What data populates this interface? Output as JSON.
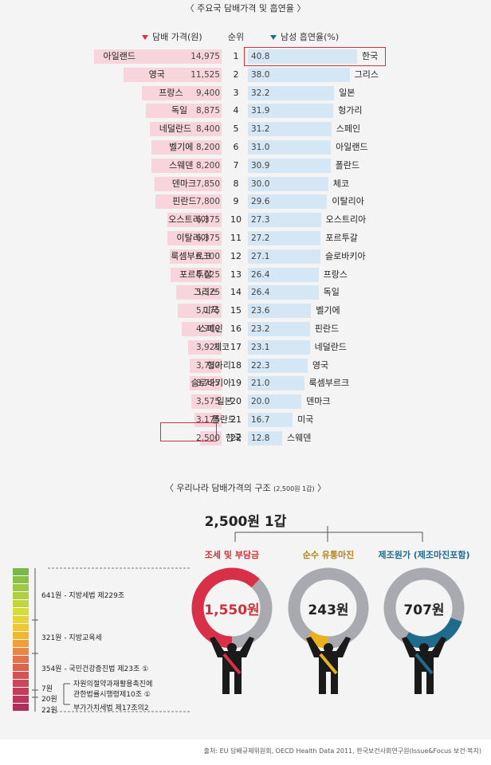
{
  "titles": {
    "top": "〈 주요국 담배가격 및 흡연율 〉",
    "bottom_main": "〈 우리나라 담배가격의 구조",
    "bottom_sub": "(2,500원 1갑)",
    "bottom_close": "〉",
    "pack": "2,500원 1갑"
  },
  "headers": {
    "price": "담배 가격(원)",
    "rank": "순위",
    "smoke": "남성 흡연율(%)"
  },
  "colors": {
    "price_bar": "#f8d5dc",
    "smoke_bar": "#d5e6f5",
    "highlight": "#c8343c",
    "tax": "#d9304a",
    "distribution": "#e8b21f",
    "manufacture": "#1f6b8e",
    "ring_bg": "#a9aab0"
  },
  "chart_data": [
    {
      "type": "bar",
      "title": "주요국 담배가격 및 흡연율",
      "series": [
        {
          "name": "담배 가격(원)",
          "categories": [
            "아일랜드",
            "영국",
            "프랑스",
            "독일",
            "네덜란드",
            "벨기에",
            "스웨덴",
            "덴마크",
            "핀란드",
            "오스트리아",
            "이탈리아",
            "룩셈부르크",
            "포르투갈",
            "그리스",
            "미국",
            "스페인",
            "체코",
            "헝가리",
            "슬로바키아",
            "일본",
            "폴란드",
            "한국"
          ],
          "values": [
            "14,975",
            "11,525",
            "9,400",
            "8,875",
            "8,400",
            "8,200",
            "8,200",
            "7,850",
            "7,800",
            "6,375",
            "6,375",
            "6,100",
            "6,025",
            "5,325",
            "5,175",
            "4,700",
            "3,925",
            "3,750",
            "3,725",
            "3,575",
            "3,175",
            "2,500"
          ]
        },
        {
          "name": "남성 흡연율(%)",
          "categories": [
            "한국",
            "그리스",
            "일본",
            "헝가리",
            "스페인",
            "아일랜드",
            "폴란드",
            "체코",
            "이탈리아",
            "오스트리아",
            "포르투갈",
            "슬로바키아",
            "프랑스",
            "독일",
            "벨기에",
            "핀란드",
            "네덜란드",
            "영국",
            "룩셈부르크",
            "덴마크",
            "미국",
            "스웨덴"
          ],
          "values": [
            "40.8",
            "38.0",
            "32.2",
            "31.9",
            "31.2",
            "31.0",
            "30.9",
            "30.0",
            "29.6",
            "27.3",
            "27.2",
            "27.1",
            "26.4",
            "26.4",
            "23.6",
            "23.2",
            "23.1",
            "22.3",
            "21.0",
            "20.0",
            "16.7",
            "12.8"
          ]
        }
      ],
      "ranks": [
        "1",
        "2",
        "3",
        "4",
        "5",
        "6",
        "7",
        "8",
        "9",
        "10",
        "11",
        "12",
        "13",
        "14",
        "15",
        "16",
        "17",
        "18",
        "19",
        "20",
        "21",
        "22"
      ],
      "highlight": "한국"
    },
    {
      "type": "pie",
      "title": "우리나라 담배가격의 구조 (2,500원 1갑)",
      "categories": [
        "조세 및 부담금",
        "순수 유통마진",
        "제조원가 (제조마진포함)"
      ],
      "labels": [
        "1,550원",
        "243원",
        "707원"
      ],
      "values": [
        1550,
        243,
        707
      ],
      "total": 2500
    }
  ],
  "legend": [
    {
      "text": "641원 - 지방세법 제229조"
    },
    {
      "text": "321원 - 지방교육세"
    },
    {
      "text": "354원 - 국민건강증진법 제23조 ①"
    },
    {
      "amount": "7원",
      "text": "자원의절약과재활용촉진에"
    },
    {
      "amount": "20원",
      "text": "관한법률시행령제10조 ①"
    },
    {
      "amount": "22원",
      "text": "부가가치세법 제17조의2"
    }
  ],
  "source": "출처: EU 담배규제위원회, OECD Health Data 2011, 한국보건사회연구원(Issue&Focus 보건·복지)"
}
